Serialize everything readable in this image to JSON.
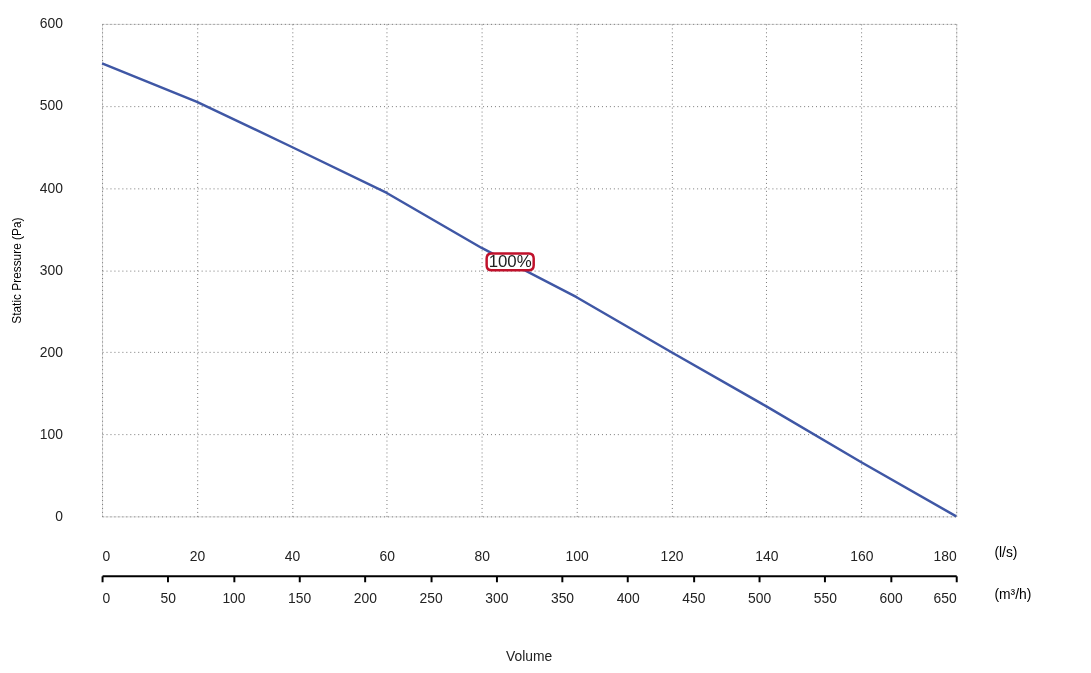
{
  "chart_data": {
    "type": "line",
    "xlabel": "(l/s)",
    "x2label": "(m³/h)",
    "ylabel": "Static Pressure (Pa)",
    "x": [
      0,
      20,
      40,
      60,
      80,
      100,
      120,
      140,
      160,
      180
    ],
    "series": [
      {
        "color": "#3f57a5",
        "values": [
          552,
          505,
          450,
          394,
          327,
          267,
          200,
          134,
          66,
          0
        ]
      }
    ],
    "xlim": [
      0,
      180
    ],
    "xticks": [
      0,
      20,
      40,
      60,
      80,
      100,
      120,
      140,
      160,
      180
    ],
    "x2lim": [
      0,
      650
    ],
    "x2ticks": [
      0,
      50,
      100,
      150,
      200,
      250,
      300,
      350,
      400,
      450,
      500,
      550,
      600,
      650
    ],
    "ylim": [
      0,
      600
    ],
    "yticks": [
      0,
      100,
      200,
      300,
      400,
      500,
      600
    ],
    "grid": true,
    "line_style": "solid",
    "marker": "none",
    "annotations": [
      {
        "text": "100%",
        "x": 86,
        "y": 310
      },
      "Volume"
    ]
  }
}
